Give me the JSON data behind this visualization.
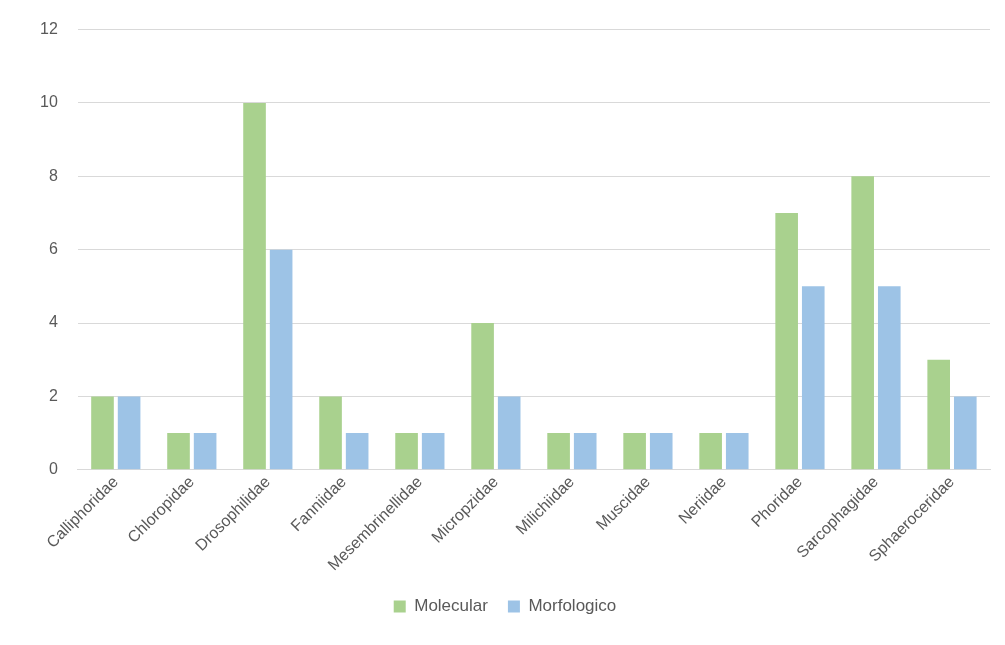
{
  "chart_data": {
    "type": "bar",
    "categories": [
      "Calliphoridae",
      "Chloropidae",
      "Drosophilidae",
      "Fanniidae",
      "Mesembrinellidae",
      "Micropzidae",
      "Milichiidae",
      "Muscidae",
      "Neriidae",
      "Phoridae",
      "Sarcophagidae",
      "Sphaeroceridae"
    ],
    "series": [
      {
        "name": "Molecular",
        "color": "#a9d18e",
        "values": [
          2,
          1,
          10,
          2,
          1,
          4,
          1,
          1,
          1,
          7,
          8,
          3
        ]
      },
      {
        "name": "Morfologico",
        "color": "#9dc3e6",
        "values": [
          2,
          1,
          6,
          1,
          1,
          2,
          1,
          1,
          1,
          5,
          5,
          2
        ]
      }
    ],
    "ylim": [
      0,
      12
    ],
    "yticks": [
      0,
      2,
      4,
      6,
      8,
      10,
      12
    ],
    "grid": "y",
    "legend": "bottom"
  }
}
